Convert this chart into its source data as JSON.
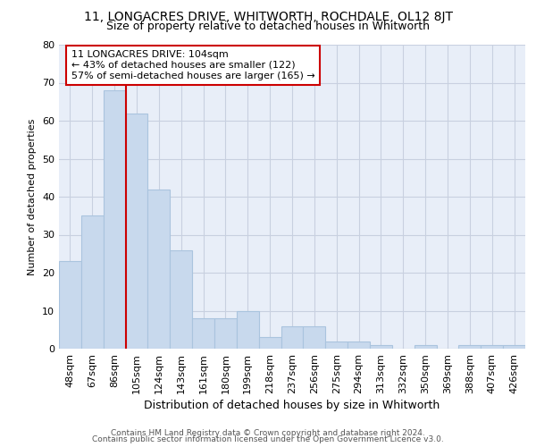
{
  "title": "11, LONGACRES DRIVE, WHITWORTH, ROCHDALE, OL12 8JT",
  "subtitle": "Size of property relative to detached houses in Whitworth",
  "xlabel": "Distribution of detached houses by size in Whitworth",
  "ylabel": "Number of detached properties",
  "bar_color": "#c8d9ed",
  "bar_edge_color": "#aac4de",
  "categories": [
    "48sqm",
    "67sqm",
    "86sqm",
    "105sqm",
    "124sqm",
    "143sqm",
    "161sqm",
    "180sqm",
    "199sqm",
    "218sqm",
    "237sqm",
    "256sqm",
    "275sqm",
    "294sqm",
    "313sqm",
    "332sqm",
    "350sqm",
    "369sqm",
    "388sqm",
    "407sqm",
    "426sqm"
  ],
  "values": [
    23,
    35,
    68,
    62,
    42,
    26,
    8,
    8,
    10,
    3,
    6,
    6,
    2,
    2,
    1,
    0,
    1,
    0,
    1,
    1,
    1
  ],
  "red_line_x": 2.5,
  "annotation_lines": [
    "11 LONGACRES DRIVE: 104sqm",
    "← 43% of detached houses are smaller (122)",
    "57% of semi-detached houses are larger (165) →"
  ],
  "annotation_box_color": "#ffffff",
  "annotation_box_edge": "#cc0000",
  "red_line_color": "#cc0000",
  "ylim": [
    0,
    80
  ],
  "yticks": [
    0,
    10,
    20,
    30,
    40,
    50,
    60,
    70,
    80
  ],
  "grid_color": "#c8d0e0",
  "axes_background": "#e8eef8",
  "figure_background": "#ffffff",
  "footer_lines": [
    "Contains HM Land Registry data © Crown copyright and database right 2024.",
    "Contains public sector information licensed under the Open Government Licence v3.0."
  ],
  "title_fontsize": 10,
  "subtitle_fontsize": 9,
  "xlabel_fontsize": 9,
  "ylabel_fontsize": 8,
  "tick_fontsize": 8,
  "footer_fontsize": 6.5,
  "annotation_fontsize": 8
}
